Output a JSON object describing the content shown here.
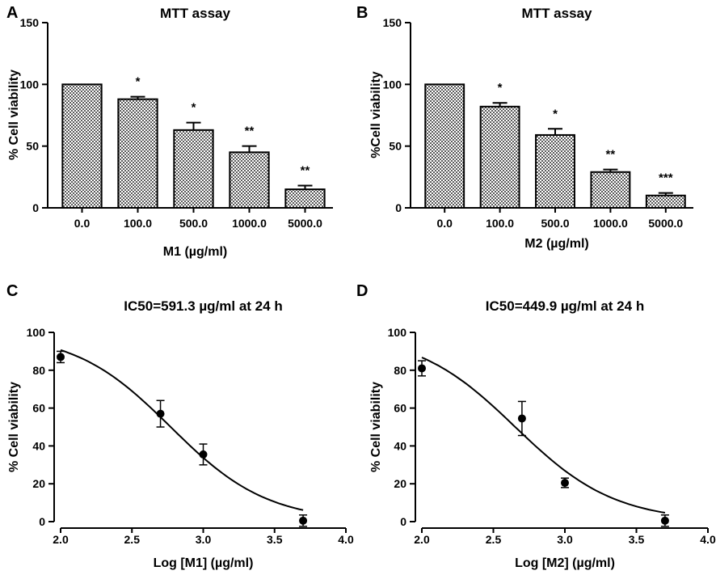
{
  "figure": {
    "colors": {
      "ink": "#000000",
      "bar_fill_dark": "#5a5a5a",
      "bar_fill_light": "#ffffff",
      "background": "#ffffff"
    }
  },
  "chart_data": [
    {
      "panel": "A",
      "type": "bar",
      "title": "MTT assay",
      "xlabel": "M1 (µg/ml)",
      "ylabel": "% Cell viability",
      "categories": [
        "0.0",
        "100.0",
        "500.0",
        "1000.0",
        "5000.0"
      ],
      "values": [
        100,
        88,
        63,
        45,
        15
      ],
      "errors": [
        0,
        2,
        6,
        5,
        3
      ],
      "significance": [
        "",
        "*",
        "*",
        "**",
        "**"
      ],
      "ylim": [
        0,
        150
      ],
      "yticks": [
        0,
        50,
        100,
        150
      ],
      "fill": "crosshatch"
    },
    {
      "panel": "B",
      "type": "bar",
      "title": "MTT assay",
      "xlabel": "M2 (µg/ml)",
      "ylabel": "%Cell viability",
      "categories": [
        "0.0",
        "100.0",
        "500.0",
        "1000.0",
        "5000.0"
      ],
      "values": [
        100,
        82,
        59,
        29,
        10
      ],
      "errors": [
        0,
        3,
        5,
        2,
        2
      ],
      "significance": [
        "",
        "*",
        "*",
        "**",
        "***"
      ],
      "ylim": [
        0,
        150
      ],
      "yticks": [
        0,
        50,
        100,
        150
      ],
      "fill": "crosshatch"
    },
    {
      "panel": "C",
      "type": "scatter",
      "title": "IC50=591.3 µg/ml at 24 h",
      "xlabel": "Log [M1] (µg/ml)",
      "ylabel": "% Cell viability",
      "x": [
        2.0,
        2.7,
        3.0,
        3.7
      ],
      "y": [
        87,
        57,
        35.5,
        0.5
      ],
      "yerr": [
        3,
        7,
        5.5,
        3
      ],
      "fit": {
        "model": "sigmoid",
        "x_range": [
          2.0,
          3.7
        ],
        "top": 100,
        "bottom": 0,
        "logIC50": 2.7718,
        "hill": 1.28
      },
      "xlim": [
        2.0,
        4.0
      ],
      "ylim": [
        0,
        100
      ],
      "xticks": [
        "2.0",
        "2.5",
        "3.0",
        "3.5",
        "4.0"
      ],
      "yticks": [
        0,
        20,
        40,
        60,
        80,
        100
      ]
    },
    {
      "panel": "D",
      "type": "scatter",
      "title": "IC50=449.9 µg/ml at 24 h",
      "xlabel": "Log [M2] (µg/ml)",
      "ylabel": "% Cell viability",
      "x": [
        2.0,
        2.7,
        3.0,
        3.7
      ],
      "y": [
        81,
        54.5,
        20.5,
        0.5
      ],
      "yerr": [
        4,
        9,
        2.5,
        3
      ],
      "fit": {
        "model": "sigmoid",
        "x_range": [
          2.0,
          3.7
        ],
        "top": 100,
        "bottom": 0,
        "logIC50": 2.6531,
        "hill": 1.25
      },
      "xlim": [
        2.0,
        4.0
      ],
      "ylim": [
        0,
        100
      ],
      "xticks": [
        "2.0",
        "2.5",
        "3.0",
        "3.5",
        "4.0"
      ],
      "yticks": [
        0,
        20,
        40,
        60,
        80,
        100
      ]
    }
  ]
}
